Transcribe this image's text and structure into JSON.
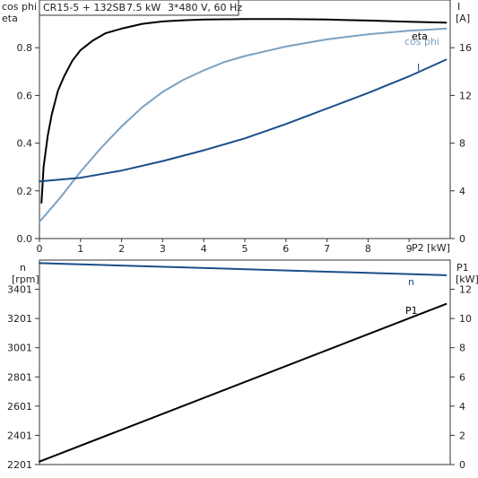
{
  "header": {
    "pump_model": "CR15-5 + 132SB",
    "power": "7.5 kW",
    "supply": "3*480 V, 60 Hz"
  },
  "colors": {
    "eta": "#000000",
    "cos_phi": "#7BA1C2",
    "I": "#1A4E8A",
    "n": "#1A4E8A",
    "P1": "#000000",
    "frame": "#333333"
  },
  "chart_data": [
    {
      "type": "line",
      "title": "",
      "xlabel": "P2 [kW]",
      "xlim": [
        0,
        10
      ],
      "x_ticks": [
        0,
        1,
        2,
        3,
        4,
        5,
        6,
        7,
        8,
        9
      ],
      "x_tick_labels": [
        "0",
        "1",
        "2",
        "3",
        "4",
        "5",
        "6",
        "7",
        "8",
        "9"
      ],
      "ylabel_left_lines": [
        "cos phi",
        "eta"
      ],
      "ylim_left": [
        0,
        1.0
      ],
      "y_ticks_left": [
        "0.0",
        "0.2",
        "0.4",
        "0.6",
        "0.8"
      ],
      "ylabel_right_lines": [
        "I",
        "[A]"
      ],
      "ylim_right": [
        0,
        20
      ],
      "y_ticks_right": [
        "0",
        "4",
        "8",
        "12",
        "16"
      ],
      "grid": false,
      "series": [
        {
          "name": "eta",
          "axis": "left",
          "color_key": "eta",
          "x": [
            0.05,
            0.1,
            0.2,
            0.3,
            0.45,
            0.6,
            0.8,
            1.0,
            1.3,
            1.6,
            2.0,
            2.5,
            3.0,
            3.5,
            4.0,
            4.5,
            5.0,
            6.0,
            7.0,
            8.0,
            9.0,
            9.9
          ],
          "y": [
            0.15,
            0.3,
            0.43,
            0.52,
            0.62,
            0.68,
            0.745,
            0.79,
            0.83,
            0.86,
            0.88,
            0.9,
            0.91,
            0.915,
            0.918,
            0.919,
            0.92,
            0.92,
            0.918,
            0.914,
            0.909,
            0.905
          ]
        },
        {
          "name": "cos phi",
          "axis": "left",
          "color_key": "cos_phi",
          "x": [
            0,
            0.5,
            1.0,
            1.5,
            2.0,
            2.5,
            3.0,
            3.5,
            4.0,
            4.5,
            5.0,
            5.5,
            6.0,
            6.5,
            7.0,
            7.5,
            8.0,
            8.5,
            9.0,
            9.5,
            9.9
          ],
          "y": [
            0.07,
            0.17,
            0.28,
            0.38,
            0.47,
            0.55,
            0.615,
            0.665,
            0.705,
            0.74,
            0.765,
            0.785,
            0.805,
            0.82,
            0.835,
            0.846,
            0.856,
            0.864,
            0.871,
            0.876,
            0.88
          ]
        },
        {
          "name": "I",
          "axis": "right",
          "color_key": "I",
          "x": [
            0,
            1,
            2,
            3,
            4,
            5,
            6,
            7,
            8,
            9,
            9.9
          ],
          "y": [
            4.8,
            5.1,
            5.7,
            6.5,
            7.4,
            8.4,
            9.6,
            10.9,
            12.2,
            13.6,
            15.0
          ]
        }
      ]
    },
    {
      "type": "line",
      "title": "",
      "xlabel": "",
      "xlim": [
        0,
        10
      ],
      "ylabel_left_lines": [
        "n",
        "[rpm]"
      ],
      "ylim_left": [
        2201,
        3601
      ],
      "y_ticks_left": [
        "3401",
        "3201",
        "3001",
        "2801",
        "2601",
        "2401",
        "2201"
      ],
      "ylabel_right_lines": [
        "P1",
        "[kW]"
      ],
      "ylim_right": [
        0,
        14
      ],
      "y_ticks_right": [
        "12",
        "10",
        "8",
        "6",
        "4",
        "2",
        "0"
      ],
      "grid": false,
      "series": [
        {
          "name": "n",
          "axis": "left",
          "color_key": "n",
          "x": [
            0,
            9.9
          ],
          "y": [
            3580,
            3497
          ]
        },
        {
          "name": "P1",
          "axis": "right",
          "color_key": "P1",
          "x": [
            0,
            9.9
          ],
          "y": [
            0.2,
            11.0
          ]
        }
      ]
    }
  ]
}
